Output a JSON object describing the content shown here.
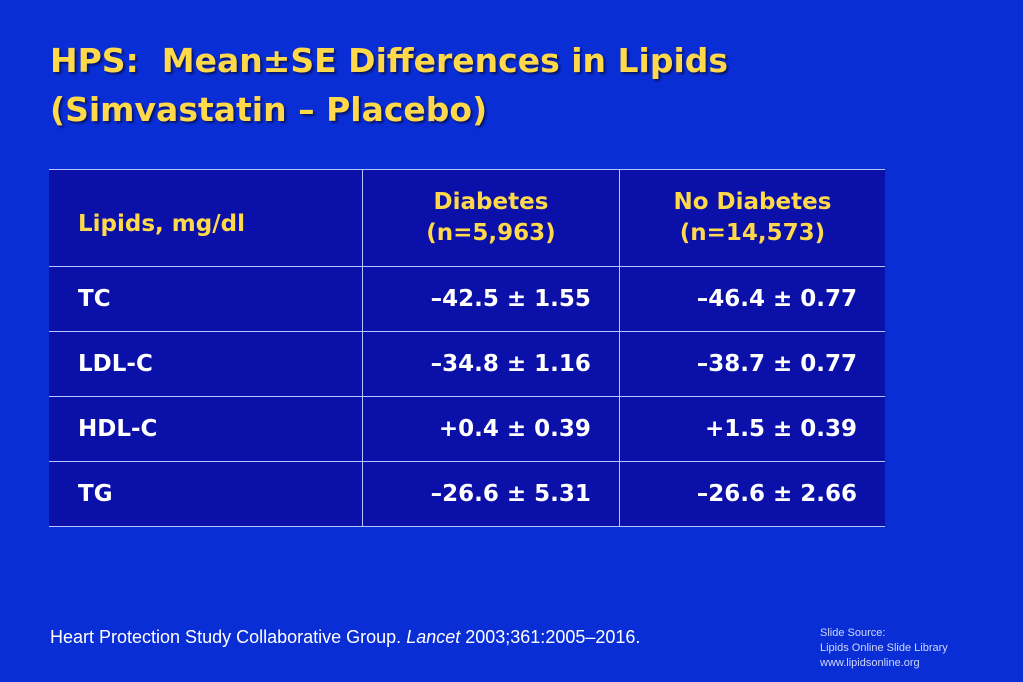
{
  "slide": {
    "title_line1": "HPS:  Mean±SE Differences in Lipids",
    "title_line2": "(Simvastatin – Placebo)"
  },
  "table": {
    "headers": {
      "col1": "Lipids, mg/dl",
      "col2_line1": "Diabetes",
      "col2_line2": "(n=5,963)",
      "col3_line1": "No Diabetes",
      "col3_line2": "(n=14,573)"
    },
    "rows": [
      {
        "lipid": "TC",
        "diabetes": "–42.5 ± 1.55",
        "no_diabetes": "–46.4 ± 0.77"
      },
      {
        "lipid": "LDL-C",
        "diabetes": "–34.8 ± 1.16",
        "no_diabetes": "–38.7 ± 0.77"
      },
      {
        "lipid": "HDL-C",
        "diabetes": "+0.4 ± 0.39",
        "no_diabetes": "+1.5 ± 0.39"
      },
      {
        "lipid": "TG",
        "diabetes": "–26.6 ± 5.31",
        "no_diabetes": "–26.6 ± 2.66"
      }
    ]
  },
  "citation": {
    "authors": "Heart Protection Study Collaborative Group. ",
    "journal": "Lancet",
    "details": " 2003;361:2005–2016."
  },
  "source": {
    "line1": "Slide Source:",
    "line2": "Lipids Online Slide Library",
    "line3": "www.lipidsonline.org"
  },
  "colors": {
    "background": "#0a2ed6",
    "table_fill": "#0a10a8",
    "title": "#ffd94a",
    "header_text": "#ffd94a",
    "body_text": "#ffffff"
  }
}
